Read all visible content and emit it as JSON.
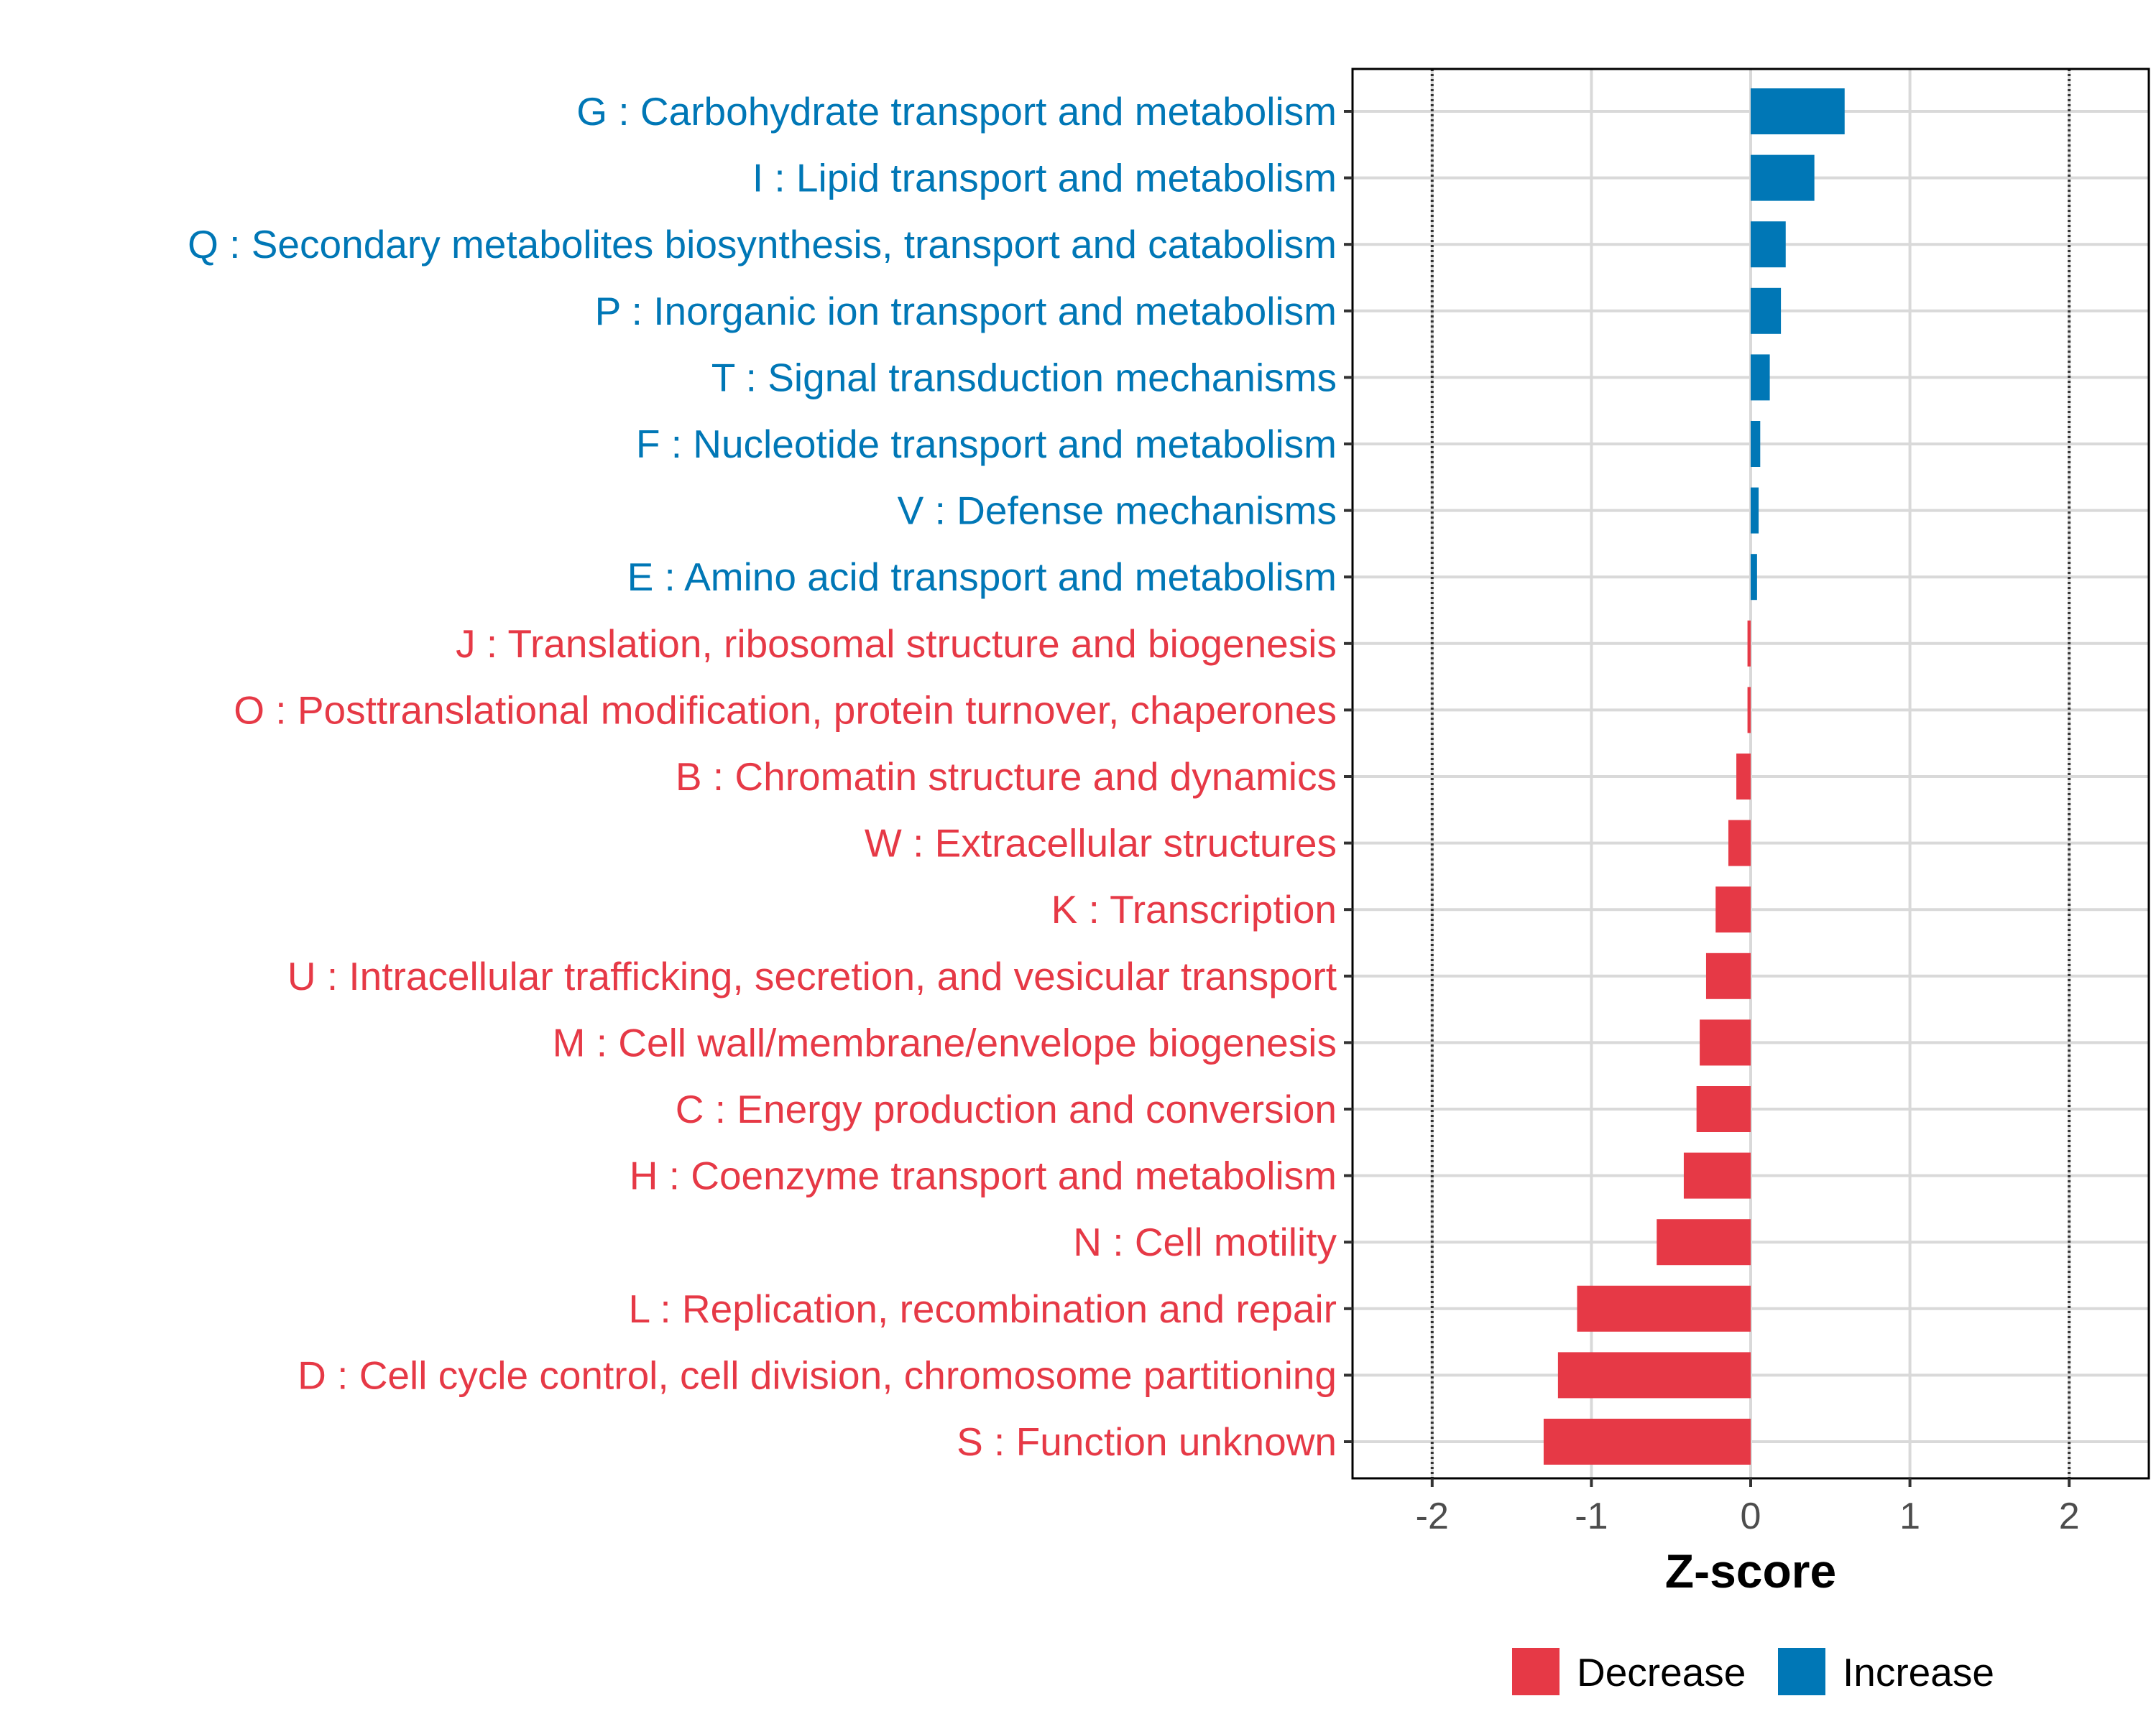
{
  "chart_data": {
    "type": "bar",
    "orientation": "horizontal",
    "xlabel": "Z-score",
    "ylabel": "",
    "xlim": [
      -2.5,
      2.5
    ],
    "x_ticks": [
      -2,
      -1,
      0,
      1,
      2
    ],
    "x_tick_labels": [
      "-2",
      "-1",
      "0",
      "1",
      "2"
    ],
    "reference_lines": [
      -2,
      2
    ],
    "grid": true,
    "legend": {
      "placement": "bottom",
      "items": [
        {
          "label": "Decrease",
          "color": "#E63946"
        },
        {
          "label": "Increase",
          "color": "#0077B6"
        }
      ]
    },
    "colors": {
      "Decrease": "#E63946",
      "Increase": "#0077B6"
    },
    "categories": [
      "G : Carbohydrate transport and metabolism",
      "I : Lipid transport and metabolism",
      "Q : Secondary metabolites biosynthesis, transport and catabolism",
      "P : Inorganic ion transport and metabolism",
      "T : Signal transduction mechanisms",
      "F : Nucleotide transport and metabolism",
      "V : Defense mechanisms",
      "E : Amino acid transport and metabolism",
      "J : Translation, ribosomal structure and biogenesis",
      "O : Posttranslational modification, protein turnover, chaperones",
      "B : Chromatin structure and dynamics",
      "W : Extracellular structures",
      "K : Transcription",
      "U : Intracellular trafficking, secretion, and vesicular transport",
      "M : Cell wall/membrane/envelope biogenesis",
      "C : Energy production and conversion",
      "H : Coenzyme transport and metabolism",
      "N : Cell motility",
      "L : Replication, recombination and repair",
      "D : Cell cycle control, cell division, chromosome partitioning",
      "S : Function unknown"
    ],
    "values": [
      0.59,
      0.4,
      0.22,
      0.19,
      0.12,
      0.06,
      0.05,
      0.04,
      -0.02,
      -0.02,
      -0.09,
      -0.14,
      -0.22,
      -0.28,
      -0.32,
      -0.34,
      -0.42,
      -0.59,
      -1.09,
      -1.21,
      -1.3
    ],
    "groups": [
      "Increase",
      "Increase",
      "Increase",
      "Increase",
      "Increase",
      "Increase",
      "Increase",
      "Increase",
      "Decrease",
      "Decrease",
      "Decrease",
      "Decrease",
      "Decrease",
      "Decrease",
      "Decrease",
      "Decrease",
      "Decrease",
      "Decrease",
      "Decrease",
      "Decrease",
      "Decrease"
    ]
  }
}
